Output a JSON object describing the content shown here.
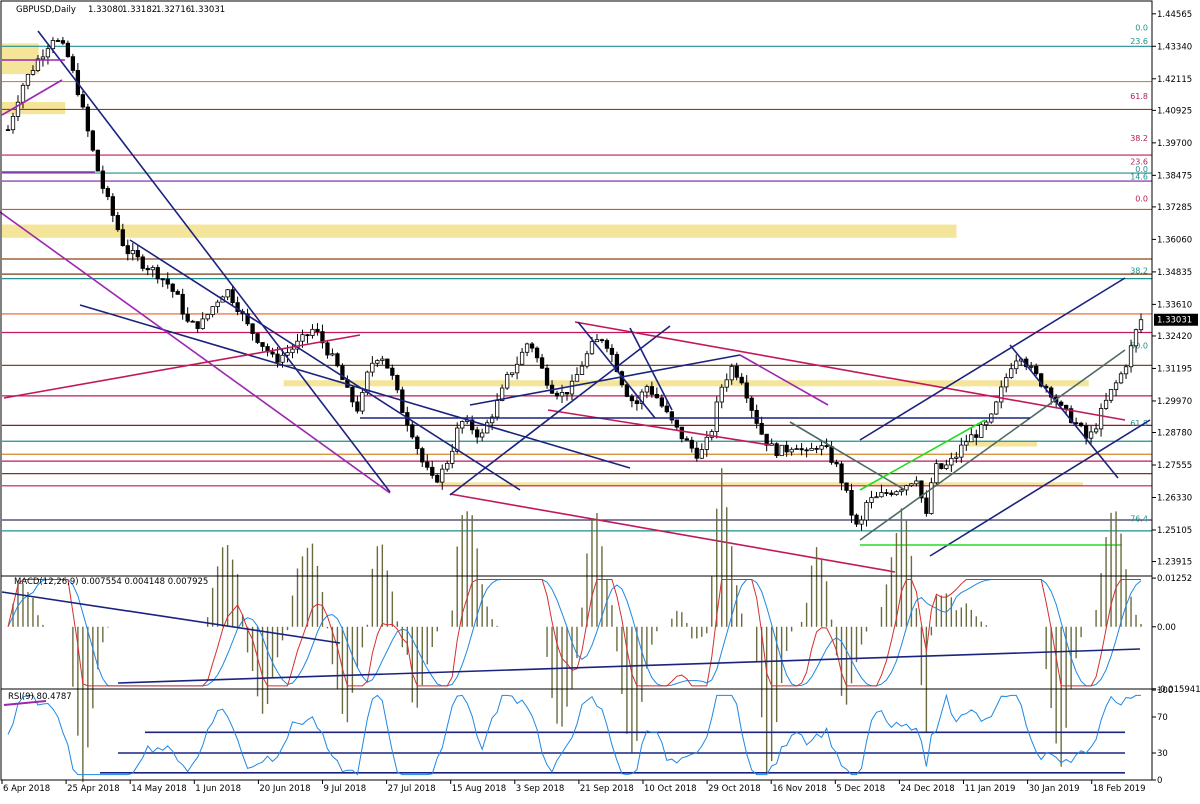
{
  "chart_data": [
    {
      "type": "candlestick",
      "title": "GBPUSD,Daily",
      "ohlc": [
        "1.33080",
        "1.33182",
        "1.32716",
        "1.33031"
      ],
      "last_price": 1.33031,
      "last_price_label": "1.33031",
      "ylim": [
        1.2337,
        1.4501
      ],
      "y_ticks": [
        1.44565,
        1.4334,
        1.42115,
        1.40925,
        1.397,
        1.38475,
        1.37285,
        1.3606,
        1.34835,
        1.3361,
        1.3242,
        1.31195,
        1.2997,
        1.2878,
        1.27555,
        1.2633,
        1.25105,
        1.23915
      ],
      "y_tick_labels": [
        "1.44565",
        "1.43340",
        "1.42115",
        "1.40925",
        "1.39700",
        "1.38475",
        "1.37285",
        "1.36060",
        "1.34835",
        "1.33610",
        "1.32420",
        "1.31195",
        "1.29970",
        "1.28780",
        "1.27555",
        "1.26330",
        "1.25105",
        "1.23915"
      ],
      "fib_labels": [
        {
          "text": "0.0",
          "price": 1.4386,
          "color": "#1f8f8f"
        },
        {
          "text": "23.6",
          "price": 1.4335,
          "color": "#1f8f8f"
        },
        {
          "text": "61.8",
          "price": 1.4127,
          "color": "#b0205a"
        },
        {
          "text": "38.2",
          "price": 1.3969,
          "color": "#b0205a"
        },
        {
          "text": "23.6",
          "price": 1.3881,
          "color": "#b0205a"
        },
        {
          "text": "0.0",
          "price": 1.3853,
          "color": "#1f8f8f"
        },
        {
          "text": "14.6",
          "price": 1.3824,
          "color": "#1f8f8f"
        },
        {
          "text": "0.0",
          "price": 1.3742,
          "color": "#b0205a"
        },
        {
          "text": "38.2",
          "price": 1.347,
          "color": "#1f8f8f"
        },
        {
          "text": "50.0",
          "price": 1.3187,
          "color": "#1f8f8f"
        },
        {
          "text": "61.8",
          "price": 1.2895,
          "color": "#1f8f8f"
        },
        {
          "text": "76.4",
          "price": 1.2535,
          "color": "#1f8f8f"
        }
      ],
      "horizontal_levels": [
        {
          "price": 1.4334,
          "color": "#1f8f8f"
        },
        {
          "price": 1.4201,
          "color": "#d4862a"
        },
        {
          "price": 1.4096,
          "color": "#8b4513"
        },
        {
          "price": 1.3924,
          "color": "#c2185b"
        },
        {
          "price": 1.3856,
          "color": "#1f8f8f"
        },
        {
          "price": 1.3826,
          "color": "#7b1fa2"
        },
        {
          "price": 1.3719,
          "color": "#d9531e"
        },
        {
          "price": 1.3532,
          "color": "#8b4513"
        },
        {
          "price": 1.3475,
          "color": "#7a3b12"
        },
        {
          "price": 1.3458,
          "color": "#1f8f8f"
        },
        {
          "price": 1.3325,
          "color": "#e8622a"
        },
        {
          "price": 1.3255,
          "color": "#c2185b"
        },
        {
          "price": 1.3131,
          "color": "#8b4513"
        },
        {
          "price": 1.3016,
          "color": "#c2185b"
        },
        {
          "price": 1.2905,
          "color": "#8b1a2a"
        },
        {
          "price": 1.2845,
          "color": "#1f8f8f"
        },
        {
          "price": 1.2796,
          "color": "#d4862a"
        },
        {
          "price": 1.277,
          "color": "#c2185b"
        },
        {
          "price": 1.2723,
          "color": "#7a3b12"
        },
        {
          "price": 1.2677,
          "color": "#c2185b"
        },
        {
          "price": 1.2548,
          "color": "#333366"
        },
        {
          "price": 1.2507,
          "color": "#1f8f8f"
        }
      ],
      "zones": [
        {
          "p1": 1.4345,
          "p2": 1.4229,
          "x1": 0.0,
          "x2": 0.032,
          "color": "#f2e08a"
        },
        {
          "p1": 1.4124,
          "p2": 1.4078,
          "x1": 0.0,
          "x2": 0.055,
          "color": "#f2e08a"
        },
        {
          "p1": 1.3662,
          "p2": 1.3612,
          "x1": 0.0,
          "x2": 0.83,
          "color": "#f2e08a"
        },
        {
          "p1": 1.3075,
          "p2": 1.3052,
          "x1": 0.245,
          "x2": 0.945,
          "color": "#f2e08a"
        },
        {
          "p1": 1.2845,
          "p2": 1.2825,
          "x1": 0.84,
          "x2": 0.9,
          "color": "#f2e08a"
        },
        {
          "p1": 1.269,
          "p2": 1.2675,
          "x1": 0.38,
          "x2": 0.94,
          "color": "#f2e08a"
        }
      ],
      "x_tick_labels": [
        "6 Apr 2018",
        "25 Apr 2018",
        "14 May 2018",
        "1 Jun 2018",
        "20 Jun 2018",
        "9 Jul 2018",
        "27 Jul 2018",
        "15 Aug 2018",
        "3 Sep 2018",
        "21 Sep 2018",
        "10 Oct 2018",
        "29 Oct 2018",
        "16 Nov 2018",
        "5 Dec 2018",
        "24 Dec 2018",
        "11 Jan 2019",
        "30 Jan 2019",
        "18 Feb 2019"
      ],
      "candle_count": 228,
      "anchors": [
        [
          0,
          1.402
        ],
        [
          5,
          1.418
        ],
        [
          11,
          1.428
        ],
        [
          17,
          1.437
        ],
        [
          22,
          1.431
        ],
        [
          26,
          1.418
        ],
        [
          31,
          1.397
        ],
        [
          35,
          1.382
        ],
        [
          40,
          1.368
        ],
        [
          44,
          1.357
        ],
        [
          50,
          1.352
        ],
        [
          56,
          1.348
        ],
        [
          60,
          1.344
        ],
        [
          64,
          1.338
        ],
        [
          68,
          1.328
        ],
        [
          73,
          1.329
        ],
        [
          78,
          1.337
        ],
        [
          82,
          1.342
        ],
        [
          86,
          1.336
        ],
        [
          90,
          1.328
        ],
        [
          95,
          1.322
        ],
        [
          100,
          1.315
        ],
        [
          105,
          1.318
        ],
        [
          110,
          1.322
        ],
        [
          115,
          1.327
        ],
        [
          120,
          1.319
        ],
        [
          124,
          1.312
        ],
        [
          128,
          1.302
        ],
        [
          132,
          1.296
        ],
        [
          136,
          1.313
        ],
        [
          140,
          1.318
        ],
        [
          144,
          1.31
        ],
        [
          148,
          1.297
        ],
        [
          152,
          1.288
        ],
        [
          156,
          1.276
        ],
        [
          160,
          1.269
        ],
        [
          164,
          1.274
        ],
        [
          167,
          1.282
        ],
        [
          170,
          1.292
        ],
        [
          174,
          1.29
        ],
        [
          178,
          1.286
        ],
        [
          181,
          1.293
        ],
        [
          185,
          1.301
        ],
        [
          188,
          1.309
        ],
        [
          192,
          1.315
        ],
        [
          196,
          1.323
        ],
        [
          200,
          1.313
        ],
        [
          204,
          1.305
        ],
        [
          208,
          1.302
        ],
        [
          212,
          1.305
        ],
        [
          216,
          1.314
        ],
        [
          220,
          1.321
        ],
        [
          224,
          1.324
        ],
        [
          228,
          1.315
        ],
        [
          232,
          1.304
        ],
        [
          236,
          1.298
        ],
        [
          240,
          1.3055
        ],
        [
          244,
          1.301
        ],
        [
          248,
          1.294
        ],
        [
          252,
          1.288
        ],
        [
          256,
          1.283
        ],
        [
          260,
          1.279
        ],
        [
          264,
          1.2865
        ],
        [
          268,
          1.3045
        ],
        [
          272,
          1.3125
        ],
        [
          276,
          1.308
        ],
        [
          280,
          1.296
        ],
        [
          284,
          1.286
        ],
        [
          288,
          1.281
        ],
        [
          292,
          1.281
        ],
        [
          296,
          1.284
        ],
        [
          300,
          1.279
        ],
        [
          304,
          1.283
        ],
        [
          308,
          1.2805
        ],
        [
          312,
          1.274
        ],
        [
          316,
          1.262
        ],
        [
          318,
          1.254
        ],
        [
          320,
          1.2505
        ],
        [
          323,
          1.262
        ],
        [
          326,
          1.2625
        ],
        [
          330,
          1.265
        ],
        [
          334,
          1.2665
        ],
        [
          338,
          1.2685
        ],
        [
          342,
          1.2715
        ],
        [
          345,
          1.2538
        ],
        [
          348,
          1.2745
        ],
        [
          352,
          1.2742
        ],
        [
          356,
          1.2782
        ],
        [
          360,
          1.2845
        ],
        [
          364,
          1.2875
        ],
        [
          367,
          1.2895
        ],
        [
          370,
          1.2935
        ],
        [
          374,
          1.3052
        ],
        [
          378,
          1.3155
        ],
        [
          381,
          1.3175
        ],
        [
          384,
          1.312
        ],
        [
          388,
          1.3072
        ],
        [
          392,
          1.3035
        ],
        [
          396,
          1.2965
        ],
        [
          400,
          1.293
        ],
        [
          404,
          1.288
        ],
        [
          406,
          1.2845
        ],
        [
          409,
          1.2905
        ],
        [
          412,
          1.2975
        ],
        [
          415,
          1.3035
        ],
        [
          418,
          1.3085
        ],
        [
          421,
          1.3155
        ],
        [
          424,
          1.3255
        ],
        [
          426,
          1.3303
        ]
      ],
      "time_scale_note": ""
    },
    {
      "type": "line",
      "title": "MACD(12,26,9) 0.007554 0.004148 0.007925",
      "series": [],
      "ylim": [
        -0.016,
        0.0128
      ],
      "y_ticks": [
        0.01252,
        0.0,
        -0.01594
      ],
      "y_tick_labels": [
        "0.01252",
        "0.00",
        "-0.015941"
      ]
    },
    {
      "type": "line",
      "title": "RSI(9) 80.4787",
      "series": [],
      "ylim": [
        0,
        100
      ],
      "y_ticks": [
        100,
        70,
        30,
        0
      ],
      "y_tick_labels": [
        "100",
        "70",
        "30",
        "0"
      ],
      "levels": [
        53,
        30,
        8
      ]
    }
  ],
  "colors": {
    "bull_body": "#ffffff",
    "bear_body": "#000000",
    "wick": "#000000",
    "macd_hist": "#6b6b3f",
    "macd_main": "#d32f2f",
    "macd_signal": "#1e88e5",
    "rsi_line": "#1e88e5",
    "trend_dark": "#1a237e",
    "trend_magenta": "#c2185b",
    "trend_purple": "#9c27b0",
    "trend_gray": "#4d6b66",
    "trend_green": "#22dd22",
    "grid": "#d6d6d6",
    "axis": "#000000",
    "price_tag_bg": "#000000",
    "price_tag_text": "#ffffff"
  }
}
